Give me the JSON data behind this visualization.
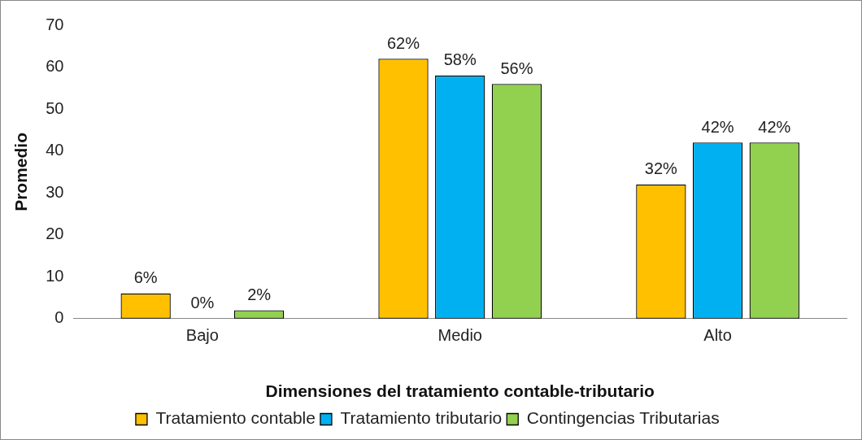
{
  "chart_data": {
    "type": "bar",
    "xlabel": "Dimensiones del tratamiento contable-tributario",
    "ylabel": "Promedio",
    "categories": [
      "Bajo",
      "Medio",
      "Alto"
    ],
    "series": [
      {
        "name": "Tratamiento contable",
        "color": "#ffc000",
        "values": [
          6,
          62,
          32
        ],
        "value_labels": [
          "6%",
          "62%",
          "32%"
        ]
      },
      {
        "name": "Tratamiento tributario",
        "color": "#00b0f0",
        "values": [
          0,
          58,
          42
        ],
        "value_labels": [
          "0%",
          "58%",
          "42%"
        ]
      },
      {
        "name": "Contingencias Tributarias",
        "color": "#92d050",
        "values": [
          2,
          56,
          42
        ],
        "value_labels": [
          "2%",
          "56%",
          "42%"
        ]
      }
    ],
    "ylim": [
      0,
      70
    ],
    "yticks": [
      0,
      10,
      20,
      30,
      40,
      50,
      60,
      70
    ],
    "grid": false,
    "legend": "bottom"
  }
}
